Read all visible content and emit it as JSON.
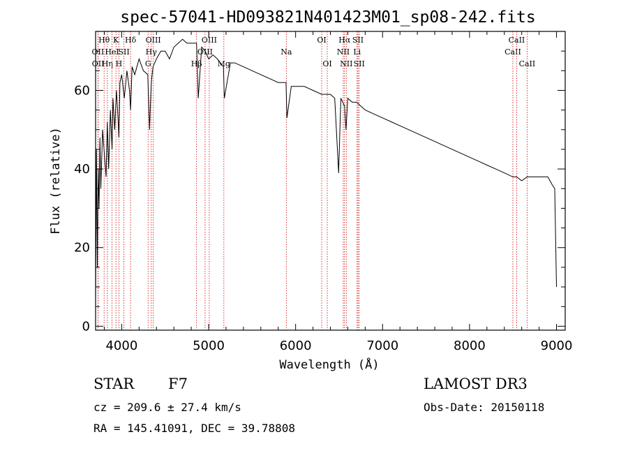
{
  "chart_data": {
    "type": "line",
    "title": "spec-57041-HD093821N401423M01_sp08-242.fits",
    "xlabel": "Wavelength (Å)",
    "ylabel": "Flux (relative)",
    "xlim": [
      3700,
      9100
    ],
    "ylim": [
      -1,
      75
    ],
    "x_ticks": [
      4000,
      5000,
      6000,
      7000,
      8000,
      9000
    ],
    "y_ticks": [
      0,
      20,
      40,
      60
    ],
    "series": [
      {
        "name": "flux",
        "x": [
          3700,
          3710,
          3720,
          3730,
          3740,
          3750,
          3760,
          3780,
          3800,
          3820,
          3835,
          3850,
          3870,
          3889,
          3900,
          3920,
          3940,
          3960,
          3968,
          3980,
          4000,
          4030,
          4060,
          4090,
          4102,
          4120,
          4150,
          4200,
          4250,
          4300,
          4320,
          4340,
          4360,
          4400,
          4450,
          4500,
          4550,
          4600,
          4650,
          4700,
          4750,
          4800,
          4861,
          4880,
          4920,
          4960,
          5000,
          5050,
          5100,
          5170,
          5180,
          5250,
          5300,
          5400,
          5500,
          5600,
          5700,
          5800,
          5890,
          5900,
          5950,
          6000,
          6100,
          6200,
          6300,
          6400,
          6450,
          6495,
          6520,
          6563,
          6580,
          6600,
          6650,
          6700,
          6750,
          6800,
          6900,
          7000,
          7100,
          7200,
          7300,
          7400,
          7500,
          7600,
          7700,
          7800,
          7900,
          8000,
          8100,
          8200,
          8300,
          8400,
          8498,
          8542,
          8600,
          8662,
          8700,
          8800,
          8900,
          8950,
          8980,
          9000
        ],
        "y": [
          7,
          45,
          15,
          40,
          30,
          48,
          35,
          50,
          44,
          38,
          52,
          40,
          55,
          45,
          58,
          50,
          60,
          52,
          48,
          62,
          64,
          58,
          65,
          60,
          55,
          66,
          64,
          68,
          65,
          64,
          50,
          62,
          66,
          68,
          70,
          70,
          68,
          71,
          72,
          73,
          72,
          72,
          72,
          58,
          71,
          70,
          68,
          69,
          68,
          66,
          58,
          67,
          67,
          66,
          65,
          64,
          63,
          62,
          62,
          53,
          61,
          61,
          61,
          60,
          59,
          59,
          58,
          39,
          58,
          56,
          50,
          58,
          57,
          57,
          56,
          55,
          54,
          53,
          52,
          51,
          50,
          49,
          48,
          47,
          46,
          45,
          44,
          43,
          42,
          41,
          40,
          39,
          38,
          38,
          37,
          38,
          38,
          38,
          38,
          36,
          35,
          10
        ]
      }
    ],
    "line_markers": [
      {
        "w": 3727,
        "name": "OII",
        "row": 2
      },
      {
        "w": 3729,
        "name": "OII",
        "row": 3
      },
      {
        "w": 3798,
        "name": "Hθ",
        "row": 1
      },
      {
        "w": 3835,
        "name": "Hη",
        "row": 3
      },
      {
        "w": 3889,
        "name": "HeI",
        "row": 2
      },
      {
        "w": 3934,
        "name": "K",
        "row": 1
      },
      {
        "w": 3968,
        "name": "H",
        "row": 3
      },
      {
        "w": 4026,
        "name": "SII",
        "row": 2
      },
      {
        "w": 4102,
        "name": "Hδ",
        "row": 1
      },
      {
        "w": 4340,
        "name": "Hγ",
        "row": 2
      },
      {
        "w": 4363,
        "name": "OIII",
        "row": 1
      },
      {
        "w": 4304,
        "name": "G",
        "row": 3
      },
      {
        "w": 4861,
        "name": "Hβ",
        "row": 3
      },
      {
        "w": 4959,
        "name": "OIII",
        "row": 2
      },
      {
        "w": 5007,
        "name": "OIII",
        "row": 1
      },
      {
        "w": 5175,
        "name": "Mg",
        "row": 3
      },
      {
        "w": 5893,
        "name": "Na",
        "row": 2
      },
      {
        "w": 6300,
        "name": "OI",
        "row": 1
      },
      {
        "w": 6364,
        "name": "OI",
        "row": 3
      },
      {
        "w": 6548,
        "name": "NII",
        "row": 2
      },
      {
        "w": 6563,
        "name": "Hα",
        "row": 1
      },
      {
        "w": 6583,
        "name": "NII",
        "row": 3
      },
      {
        "w": 6707,
        "name": "Li",
        "row": 2
      },
      {
        "w": 6717,
        "name": "SII",
        "row": 1
      },
      {
        "w": 6731,
        "name": "SII",
        "row": 3
      },
      {
        "w": 8498,
        "name": "CaII",
        "row": 2
      },
      {
        "w": 8542,
        "name": "CaII",
        "row": 1
      },
      {
        "w": 8662,
        "name": "CaII",
        "row": 3
      }
    ],
    "grid": false
  },
  "info": {
    "class_label": "STAR",
    "subclass": "F7",
    "survey": "LAMOST DR3",
    "redshift": "cz = 209.6 ± 27.4 km/s",
    "obs_date": "Obs-Date: 20150118",
    "coords": "RA = 145.41091, DEC =  39.78808"
  },
  "colors": {
    "line_marker": "#cc0000",
    "spectrum": "#000000"
  }
}
